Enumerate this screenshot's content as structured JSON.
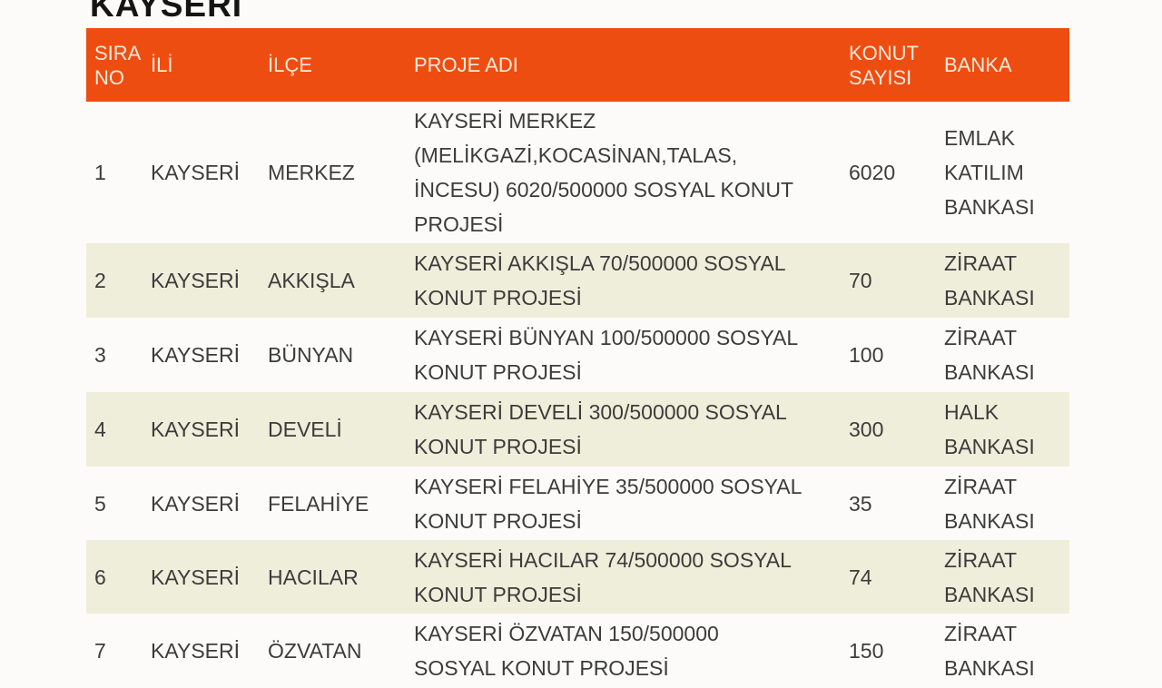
{
  "page": {
    "title": "KAYSERİ"
  },
  "colors": {
    "header_bg": "#ee4d11",
    "header_text": "#fbe8da",
    "row_alt_bg": "#efeeda",
    "row_bg": "#fcfbf9",
    "body_text": "#3c3c3c",
    "title_text": "#151515"
  },
  "table": {
    "columns": [
      {
        "key": "sira_no",
        "label": "SIRA NO"
      },
      {
        "key": "ili",
        "label": "İLİ"
      },
      {
        "key": "ilce",
        "label": "İLÇE"
      },
      {
        "key": "proje_adi",
        "label": "PROJE ADI"
      },
      {
        "key": "konut_sayisi",
        "label": "KONUT SAYISI"
      },
      {
        "key": "banka",
        "label": "BANKA"
      }
    ],
    "rows": [
      {
        "sira_no": "1",
        "ili": "KAYSERİ",
        "ilce": "MERKEZ",
        "proje_adi": [
          "KAYSERİ MERKEZ",
          "(MELİKGAZİ,KOCASİNAN,TALAS,",
          "İNCESU) 6020/500000 SOSYAL KONUT",
          "PROJESİ"
        ],
        "konut_sayisi": "6020",
        "banka": [
          "EMLAK",
          "KATILIM",
          "BANKASI"
        ]
      },
      {
        "sira_no": "2",
        "ili": "KAYSERİ",
        "ilce": "AKKIŞLA",
        "proje_adi": [
          "KAYSERİ AKKIŞLA 70/500000 SOSYAL",
          "KONUT PROJESİ"
        ],
        "konut_sayisi": "70",
        "banka": [
          "ZİRAAT",
          "BANKASI"
        ]
      },
      {
        "sira_no": "3",
        "ili": "KAYSERİ",
        "ilce": "BÜNYAN",
        "proje_adi": [
          "KAYSERİ BÜNYAN 100/500000 SOSYAL",
          "KONUT PROJESİ"
        ],
        "konut_sayisi": "100",
        "banka": [
          "ZİRAAT",
          "BANKASI"
        ]
      },
      {
        "sira_no": "4",
        "ili": "KAYSERİ",
        "ilce": "DEVELİ",
        "proje_adi": [
          "KAYSERİ DEVELİ 300/500000 SOSYAL",
          "KONUT PROJESİ"
        ],
        "konut_sayisi": "300",
        "banka": [
          "HALK",
          "BANKASI"
        ]
      },
      {
        "sira_no": "5",
        "ili": "KAYSERİ",
        "ilce": "FELAHİYE",
        "proje_adi": [
          "KAYSERİ FELAHİYE 35/500000 SOSYAL",
          "KONUT PROJESİ"
        ],
        "konut_sayisi": "35",
        "banka": [
          "ZİRAAT",
          "BANKASI"
        ]
      },
      {
        "sira_no": "6",
        "ili": "KAYSERİ",
        "ilce": "HACILAR",
        "proje_adi": [
          "KAYSERİ HACILAR 74/500000 SOSYAL",
          "KONUT PROJESİ"
        ],
        "konut_sayisi": "74",
        "banka": [
          "ZİRAAT",
          "BANKASI"
        ]
      },
      {
        "sira_no": "7",
        "ili": "KAYSERİ",
        "ilce": "ÖZVATAN",
        "proje_adi": [
          "KAYSERİ ÖZVATAN 150/500000",
          "SOSYAL KONUT PROJESİ"
        ],
        "konut_sayisi": "150",
        "banka": [
          "ZİRAAT",
          "BANKASI"
        ]
      }
    ]
  }
}
